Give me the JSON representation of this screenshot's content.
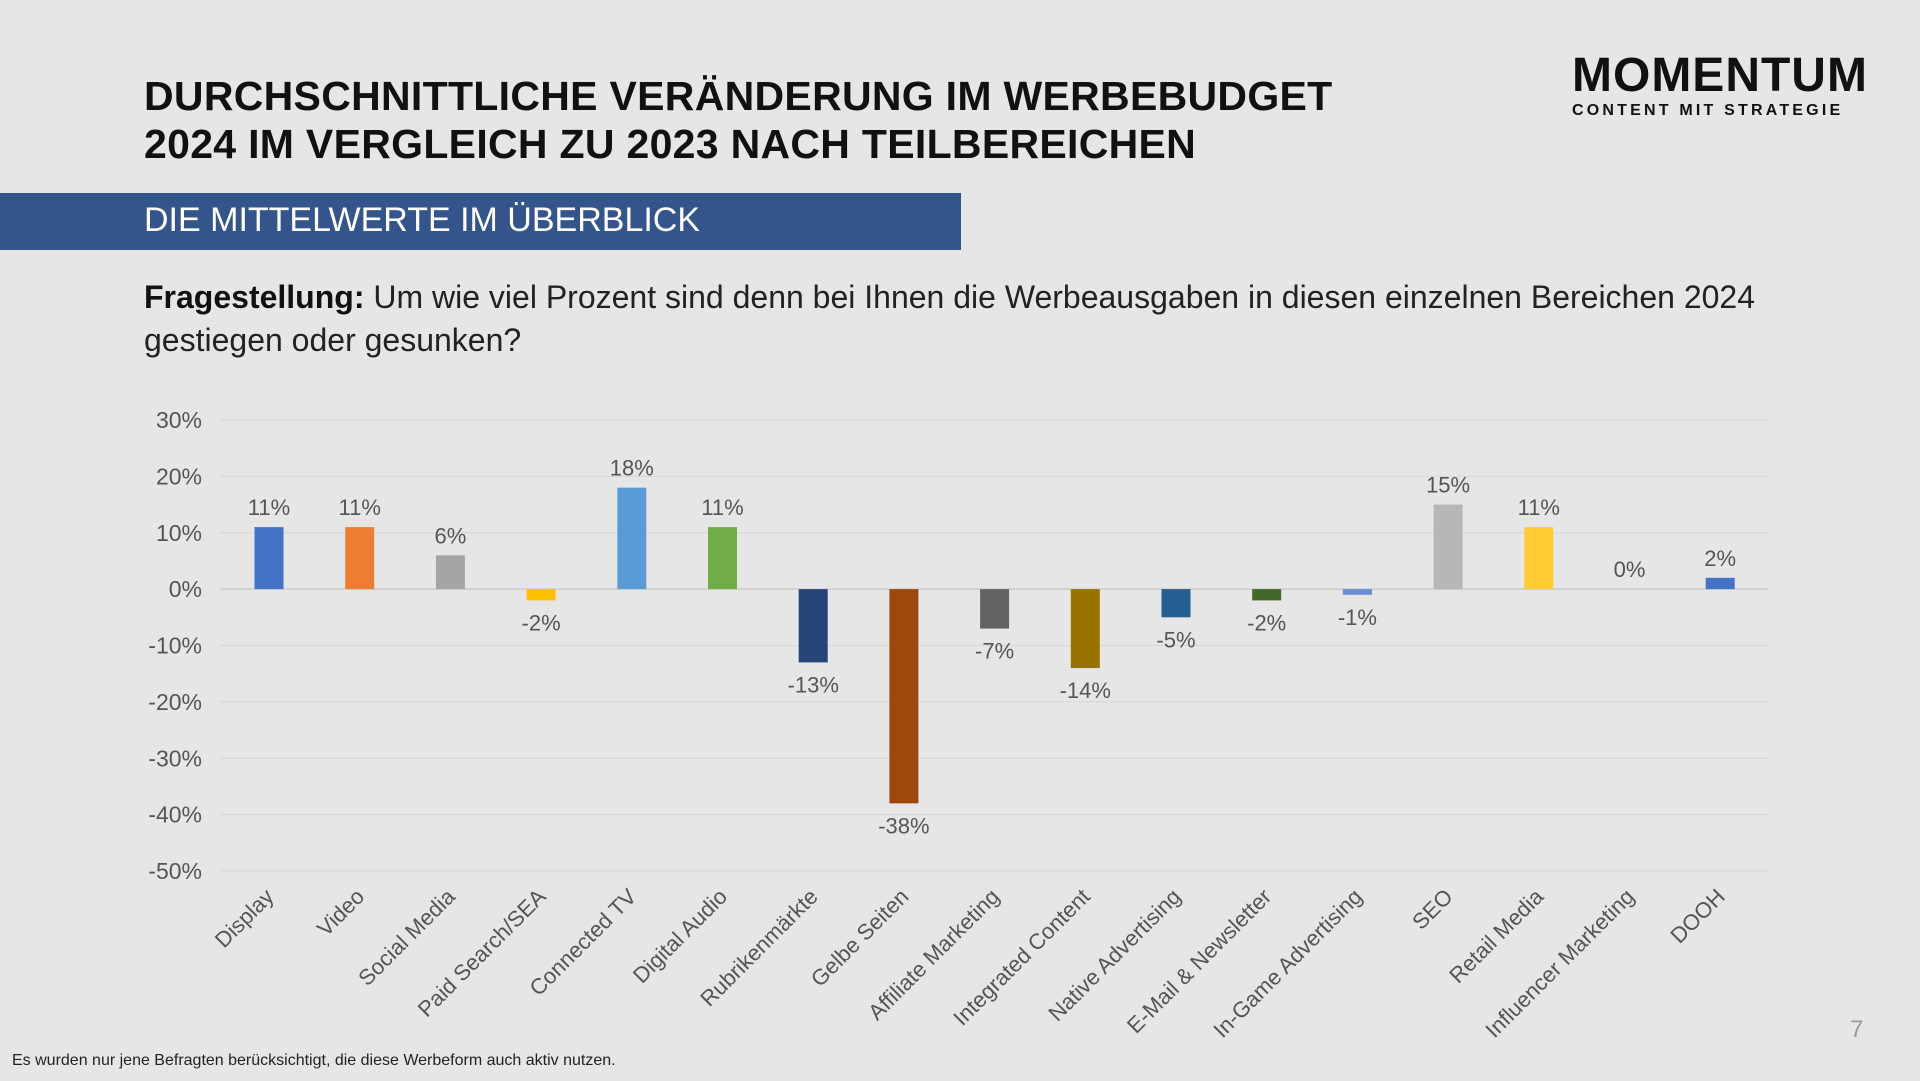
{
  "header": {
    "title_line1": "DURCHSCHNITTLICHE VERÄNDERUNG IM WERBEBUDGET",
    "title_line2": "2024 IM VERGLEICH ZU 2023 NACH TEILBEREICHEN",
    "logo_main": "MOMENTUM",
    "logo_sub": "CONTENT MIT STRATEGIE",
    "banner": "DIE MITTELWERTE IM ÜBERBLICK",
    "question_label": "Fragestellung:",
    "question_text": " Um wie viel Prozent sind denn bei Ihnen die Werbeausgaben in diesen einzelnen Bereichen 2024 gestiegen oder gesunken?"
  },
  "footer": {
    "note": "Es wurden nur jene Befragten berücksichtigt, die diese Werbeform auch aktiv nutzen.",
    "page_number": "7"
  },
  "colors": {
    "background": "#e6e6e6",
    "banner": "#34558b"
  },
  "chart_data": {
    "type": "bar",
    "ylim": [
      -50,
      30
    ],
    "yticks": [
      30,
      20,
      10,
      0,
      -10,
      -20,
      -30,
      -40,
      -50
    ],
    "ytick_labels": [
      "30%",
      "20%",
      "10%",
      "0%",
      "-10%",
      "-20%",
      "-30%",
      "-40%",
      "-50%"
    ],
    "grid": true,
    "categories": [
      "Display",
      "Video",
      "Social Media",
      "Paid Search/SEA",
      "Connected TV",
      "Digital Audio",
      "Rubrikenmärkte",
      "Gelbe Seiten",
      "Affiliate Marketing",
      "Integrated Content",
      "Native Advertising",
      "E-Mail & Newsletter",
      "In-Game Advertising",
      "SEO",
      "Retail Media",
      "Influencer Marketing",
      "DOOH"
    ],
    "values": [
      11,
      11,
      6,
      -2,
      18,
      11,
      -13,
      -38,
      -7,
      -14,
      -5,
      -2,
      -1,
      15,
      11,
      0,
      2
    ],
    "data_labels": [
      "11%",
      "11%",
      "6%",
      "-2%",
      "18%",
      "11%",
      "-13%",
      "-38%",
      "-7%",
      "-14%",
      "-5%",
      "-2%",
      "-1%",
      "15%",
      "11%",
      "0%",
      "2%"
    ],
    "bar_colors": [
      "#4472c4",
      "#ed7d31",
      "#a5a5a5",
      "#ffc000",
      "#5b9bd5",
      "#70ad47",
      "#264478",
      "#9e480e",
      "#636363",
      "#997300",
      "#255e91",
      "#43682b",
      "#698ed0",
      "#b7b7b7",
      "#ffcd33",
      "#7f7f7f",
      "#4472c4"
    ]
  }
}
